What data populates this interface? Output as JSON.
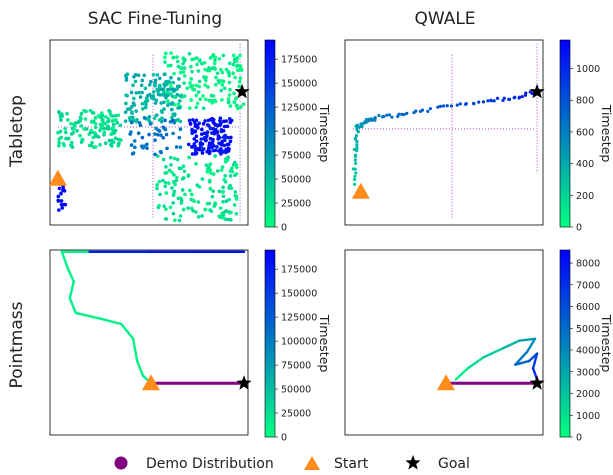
{
  "columns": [
    "SAC Fine-Tuning",
    "QWALE"
  ],
  "rows": [
    "Tabletop",
    "Pointmass"
  ],
  "legend": [
    {
      "label": "Demo Distribution",
      "marker": "circle",
      "color": "#800080"
    },
    {
      "label": "Start",
      "marker": "triangle",
      "color": "#ff8c1a"
    },
    {
      "label": "Goal",
      "marker": "star",
      "color": "#000000"
    }
  ],
  "colorbar_label": "Timestep",
  "colors": {
    "cmap_low": "#00ff80",
    "cmap_high": "#0000ff",
    "demo": "#c080d8",
    "demo_dark": "#800080",
    "start": "#ff8c1a",
    "goal": "#000000"
  },
  "chart_data": [
    {
      "type": "scatter",
      "title": "SAC Fine-Tuning",
      "row": "Tabletop",
      "xlim": [
        0,
        1
      ],
      "ylim": [
        0,
        1
      ],
      "start": [
        0.04,
        0.25
      ],
      "goal": [
        0.97,
        0.72
      ],
      "colorbar": {
        "label": "Timestep",
        "range": [
          0,
          195000
        ],
        "ticks": [
          "0",
          "25000",
          "50000",
          "75000",
          "100000",
          "125000",
          "150000",
          "175000"
        ]
      },
      "clusters": [
        {
          "x": [
            0.58,
            0.98
          ],
          "y": [
            0.63,
            0.93
          ],
          "t": 0.05,
          "n": 160
        },
        {
          "x": [
            0.38,
            0.66
          ],
          "y": [
            0.55,
            0.82
          ],
          "t": 0.3,
          "n": 140
        },
        {
          "x": [
            0.04,
            0.36
          ],
          "y": [
            0.42,
            0.62
          ],
          "t": 0.12,
          "n": 140
        },
        {
          "x": [
            0.54,
            0.95
          ],
          "y": [
            0.02,
            0.38
          ],
          "t": 0.1,
          "n": 150
        },
        {
          "x": [
            0.7,
            0.92
          ],
          "y": [
            0.38,
            0.58
          ],
          "t": 0.95,
          "n": 140
        },
        {
          "x": [
            0.4,
            0.66
          ],
          "y": [
            0.38,
            0.58
          ],
          "t": 0.55,
          "n": 45
        },
        {
          "x": [
            0.04,
            0.08
          ],
          "y": [
            0.06,
            0.22
          ],
          "t": 1.0,
          "n": 16
        }
      ]
    },
    {
      "type": "scatter",
      "title": "QWALE",
      "row": "Tabletop",
      "xlim": [
        0,
        1
      ],
      "ylim": [
        0,
        1
      ],
      "start": [
        0.08,
        0.18
      ],
      "goal": [
        0.97,
        0.72
      ],
      "colorbar": {
        "label": "Timestep",
        "range": [
          0,
          1180
        ],
        "ticks": [
          "0",
          "200",
          "400",
          "600",
          "800",
          "1000"
        ]
      },
      "trajectory": [
        [
          0.05,
          0.22
        ],
        [
          0.05,
          0.4
        ],
        [
          0.06,
          0.52
        ],
        [
          0.1,
          0.56
        ],
        [
          0.16,
          0.58
        ],
        [
          0.3,
          0.6
        ],
        [
          0.5,
          0.64
        ],
        [
          0.7,
          0.67
        ],
        [
          0.85,
          0.69
        ],
        [
          0.97,
          0.72
        ]
      ]
    },
    {
      "type": "line",
      "title": "SAC Fine-Tuning",
      "row": "Pointmass",
      "xlim": [
        0,
        1
      ],
      "ylim": [
        0,
        1
      ],
      "start": [
        0.51,
        0.28
      ],
      "goal": [
        0.98,
        0.28
      ],
      "colorbar": {
        "label": "Timestep",
        "range": [
          0,
          195000
        ],
        "ticks": [
          "0",
          "25000",
          "50000",
          "75000",
          "100000",
          "125000",
          "150000",
          "175000"
        ]
      },
      "trajectory": [
        [
          0.51,
          0.28
        ],
        [
          0.47,
          0.32
        ],
        [
          0.44,
          0.4
        ],
        [
          0.42,
          0.52
        ],
        [
          0.36,
          0.6
        ],
        [
          0.25,
          0.63
        ],
        [
          0.13,
          0.66
        ],
        [
          0.1,
          0.74
        ],
        [
          0.12,
          0.83
        ],
        [
          0.09,
          0.9
        ],
        [
          0.06,
          0.99
        ],
        [
          0.2,
          0.99
        ],
        [
          0.5,
          0.99
        ],
        [
          0.72,
          0.99
        ],
        [
          0.98,
          0.99
        ]
      ]
    },
    {
      "type": "line",
      "title": "QWALE",
      "row": "Pointmass",
      "xlim": [
        0,
        1
      ],
      "ylim": [
        0,
        1
      ],
      "start": [
        0.51,
        0.28
      ],
      "goal": [
        0.97,
        0.28
      ],
      "colorbar": {
        "label": "Timestep",
        "range": [
          0,
          8600
        ],
        "ticks": [
          "0",
          "1000",
          "2000",
          "3000",
          "4000",
          "5000",
          "6000",
          "7000",
          "8000"
        ]
      },
      "trajectory": [
        [
          0.56,
          0.3
        ],
        [
          0.62,
          0.36
        ],
        [
          0.7,
          0.42
        ],
        [
          0.8,
          0.47
        ],
        [
          0.88,
          0.51
        ],
        [
          0.96,
          0.52
        ],
        [
          0.92,
          0.45
        ],
        [
          0.86,
          0.38
        ],
        [
          0.93,
          0.4
        ],
        [
          0.97,
          0.44
        ],
        [
          0.95,
          0.36
        ],
        [
          0.97,
          0.3
        ]
      ]
    }
  ]
}
